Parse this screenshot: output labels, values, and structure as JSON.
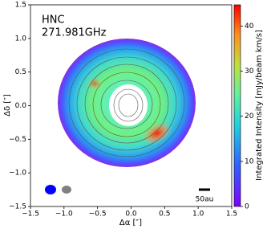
{
  "chart_data": {
    "type": "image",
    "title": "HNC",
    "subtitle": "271.981GHz",
    "xlabel": "Δα [″]",
    "ylabel": "Δδ [″]",
    "xlim": [
      -1.5,
      1.5
    ],
    "ylim": [
      -1.5,
      1.5
    ],
    "xticks": [
      {
        "value": -1.5,
        "label": "−1.5"
      },
      {
        "value": -1,
        "label": "−1.0"
      },
      {
        "value": -0.5,
        "label": "−0.5"
      },
      {
        "value": 0,
        "label": "0.0"
      },
      0.5,
      {
        "value": 1,
        "label": "1.0"
      },
      1.5
    ],
    "yticks": [
      {
        "value": -1.5,
        "label": "−1.5"
      },
      {
        "value": -1,
        "label": "−1.0"
      },
      {
        "value": -0.5,
        "label": "−0.5"
      },
      {
        "value": 0,
        "label": "0.0"
      },
      0.5,
      {
        "value": 1,
        "label": "1.0"
      },
      1.5
    ],
    "colorbar": {
      "label": "Integrated Intensity [mJy/beam km/s]",
      "clim": [
        0,
        44.7
      ],
      "ticks": [
        0,
        10,
        20,
        30,
        40
      ]
    },
    "scalebar_label": "50au"
  }
}
